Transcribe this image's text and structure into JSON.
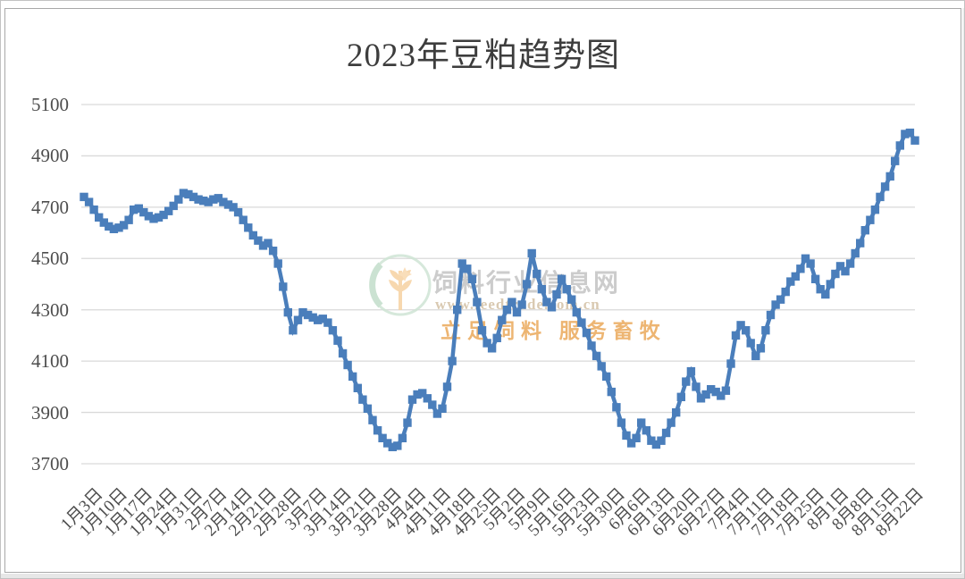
{
  "title": "2023年豆粕趋势图",
  "watermark": {
    "site_name": "饲料行业信息网",
    "url": "www.feedtrade.com.cn",
    "slogan": "立足饲料 服务畜牧"
  },
  "colors": {
    "series": "#4A7EBB",
    "gridline": "#D9D9D9",
    "title_text": "#3D3D3D",
    "axis_text": "#4D4D4D",
    "watermark_green": "#CBE3D3",
    "watermark_wheat": "#F6D2A2",
    "watermark_grey": "#C7C7C7",
    "watermark_orange": "#E9A350"
  },
  "chart_data": {
    "type": "line",
    "title": "2023年豆粕趋势图",
    "marker": "square",
    "grid": "horizontal",
    "legend": "none",
    "ylim": [
      3700,
      5100
    ],
    "y_ticks": [
      5100,
      4900,
      4700,
      4500,
      4300,
      4100,
      3900,
      3700
    ],
    "x_tick_every": 5,
    "x_tick_labels": [
      "1月3日",
      "1月10日",
      "1月17日",
      "1月24日",
      "1月31日",
      "2月7日",
      "2月14日",
      "2月21日",
      "2月28日",
      "3月7日",
      "3月14日",
      "3月21日",
      "3月28日",
      "4月4日",
      "4月11日",
      "4月18日",
      "4月25日",
      "5月2日",
      "5月9日",
      "5月16日",
      "5月23日",
      "5月30日",
      "6月6日",
      "6月13日",
      "6月20日",
      "6月27日",
      "7月4日",
      "7月11日",
      "7月18日",
      "7月25日",
      "8月1日",
      "8月8日",
      "8月15日",
      "8月22日"
    ],
    "values": [
      4740,
      4720,
      4690,
      4660,
      4640,
      4625,
      4615,
      4620,
      4630,
      4650,
      4690,
      4695,
      4680,
      4665,
      4655,
      4660,
      4670,
      4685,
      4705,
      4730,
      4755,
      4750,
      4740,
      4730,
      4725,
      4720,
      4730,
      4735,
      4720,
      4710,
      4700,
      4680,
      4650,
      4620,
      4590,
      4570,
      4550,
      4560,
      4530,
      4480,
      4390,
      4290,
      4220,
      4260,
      4290,
      4280,
      4270,
      4260,
      4265,
      4250,
      4220,
      4180,
      4130,
      4085,
      4040,
      3995,
      3950,
      3915,
      3870,
      3830,
      3800,
      3780,
      3765,
      3770,
      3800,
      3860,
      3950,
      3970,
      3975,
      3955,
      3930,
      3895,
      3915,
      4000,
      4100,
      4300,
      4480,
      4460,
      4420,
      4330,
      4220,
      4170,
      4150,
      4190,
      4260,
      4300,
      4330,
      4290,
      4320,
      4400,
      4520,
      4440,
      4380,
      4330,
      4310,
      4360,
      4420,
      4380,
      4340,
      4290,
      4250,
      4210,
      4160,
      4120,
      4080,
      4040,
      3980,
      3920,
      3860,
      3810,
      3780,
      3800,
      3860,
      3830,
      3790,
      3775,
      3790,
      3820,
      3860,
      3900,
      3960,
      4020,
      4060,
      4000,
      3955,
      3970,
      3990,
      3980,
      3965,
      3985,
      4090,
      4200,
      4240,
      4220,
      4170,
      4120,
      4150,
      4220,
      4280,
      4320,
      4340,
      4370,
      4410,
      4430,
      4460,
      4500,
      4480,
      4420,
      4380,
      4360,
      4400,
      4440,
      4470,
      4450,
      4480,
      4520,
      4560,
      4610,
      4650,
      4690,
      4740,
      4780,
      4820,
      4880,
      4940,
      4985,
      4990,
      4960
    ]
  }
}
